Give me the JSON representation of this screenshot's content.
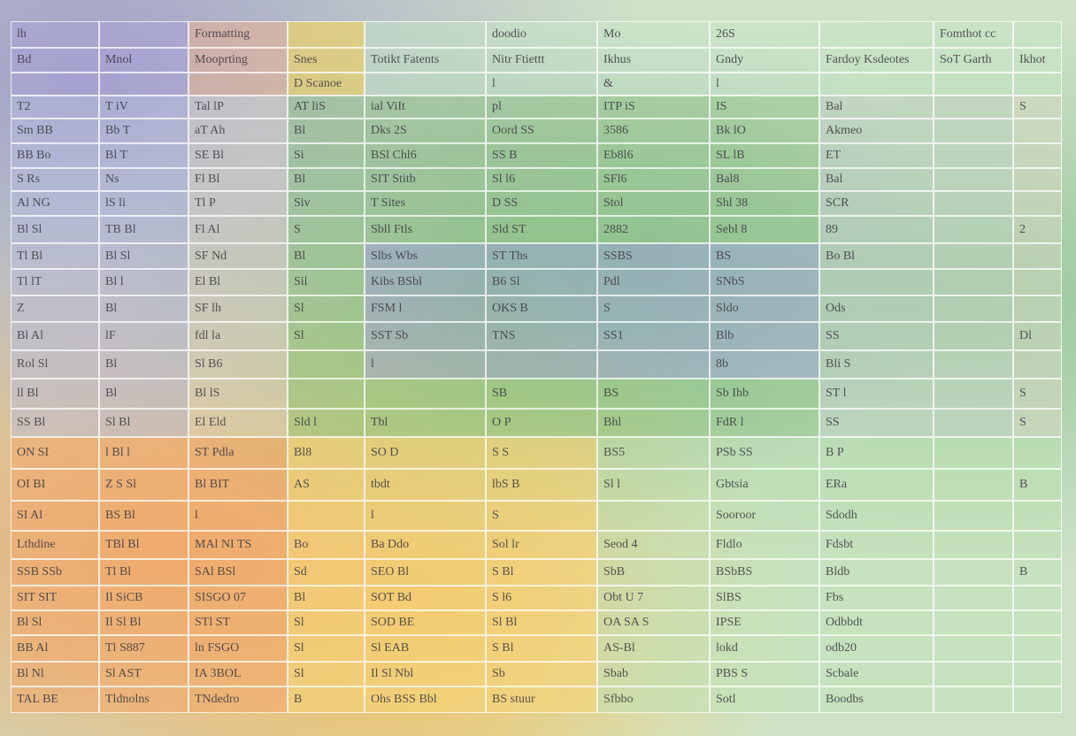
{
  "table": {
    "rows": [
      [
        "lh",
        null,
        "Formatting",
        null,
        null,
        "doodio",
        "Mo",
        "26S",
        null,
        "Fomthot cc",
        null
      ],
      [
        "Bd",
        "Mnol",
        "Mooprting",
        "Snes",
        "Totikt Fatents",
        "Nitr Ftiettt",
        "Ikhus",
        "Gndy",
        "Fardoy Ksdeotes",
        "SoT Garth",
        "Ikhot"
      ],
      [
        null,
        null,
        null,
        "D Scanoe",
        null,
        "l",
        "&",
        "l",
        null,
        null,
        null
      ],
      [
        "T2",
        "T iV",
        "Tal lP",
        "AT liS",
        "ial ViIt",
        "pl",
        "ITP iS",
        "IS",
        "Bal",
        null,
        "S"
      ],
      [
        "Sm BB",
        "Bb T",
        "aT Ah",
        "Bl",
        "Dks 2S",
        "Oord SS",
        "3586",
        "Bk lO",
        "Akmeo",
        null,
        null
      ],
      [
        "BB Bo",
        "Bl T",
        "SE Bl",
        "Si",
        "BSl Chl6",
        "SS B",
        "Eb8l6",
        "SL lB",
        "ET",
        null,
        null
      ],
      [
        "S Rs",
        "Ns",
        "Fl Bl",
        "Bl",
        "SIT Stitb",
        "Sl l6",
        "SFl6",
        "Bal8",
        "Bal",
        null,
        null
      ],
      [
        "Al NG",
        "lS li",
        "Tl P",
        "Siv",
        "T Sites",
        "D SS",
        "Stol",
        "Shl 38",
        "SCR",
        null,
        null
      ],
      [
        "Bl Sl",
        "TB Bl",
        "Fl Al",
        "S",
        "Sbll Ftls",
        "Sld ST",
        "2882",
        "Sebl 8",
        "89",
        null,
        "2"
      ],
      [
        "Tl Bl",
        "Bl Sl",
        "SF Nd",
        "Bl",
        "Slbs Wbs",
        "ST Ths",
        "SSBS",
        "BS",
        "Bo Bl",
        null,
        null
      ],
      [
        "Tl lT",
        "Bl l",
        "El Bl",
        "Sil",
        "Kibs BSbl",
        "B6 Sl",
        "Pdl",
        "SNbS",
        null,
        null,
        null
      ],
      [
        "Z",
        "Bl",
        "SF lh",
        "Sl",
        "FSM l",
        "OKS B",
        "S",
        "Sldo",
        "Ods",
        null,
        null
      ],
      [
        "Bl Al",
        "lF",
        "fdl la",
        "Sl",
        "SST Sb",
        "TNS",
        "SS1",
        "Blb",
        "SS",
        null,
        "Dl"
      ],
      [
        "Rol Sl",
        "Bl",
        "Sl B6",
        null,
        "l",
        null,
        null,
        "8b",
        "Bli S",
        null,
        null
      ],
      [
        "ll Bl",
        "Bl",
        "Bl lS",
        null,
        null,
        "SB",
        "BS",
        "Sb Ihb",
        "ST l",
        null,
        "S"
      ],
      [
        "SS Bl",
        "Sl Bl",
        "El Eld",
        "Sld l",
        "Tbl",
        "O P",
        "Bhl",
        "FdR l",
        "SS",
        null,
        "S"
      ],
      [
        "ON SI",
        "l Bl l",
        "ST Pdla",
        "Bl8",
        "SO D",
        "S S",
        "BS5",
        "PSb SS",
        "B P",
        null,
        null
      ],
      [
        "OI BI",
        "Z S Sl",
        "Bl BIT",
        "AS",
        "tbdt",
        "lbS B",
        "Sl l",
        "Gbtsia",
        "ERa",
        null,
        "B"
      ],
      [
        "SI Al",
        "BS Bl",
        "l",
        null,
        "l",
        "S",
        null,
        "Sooroor",
        "Sdodh",
        null,
        null
      ],
      [
        "Lthdine",
        "TBl Bl",
        "MAl NI TS",
        "Bo",
        "Ba Ddo",
        "Sol lr",
        "Seod 4",
        "Fldlo",
        "Fdsbt",
        null,
        null
      ],
      [
        "SSB SSb",
        "Tl Bl",
        "SAl BSl",
        "Sd",
        "SEO Bl",
        "S Bl",
        "SbB",
        "BSbBS",
        "Bldb",
        null,
        "B"
      ],
      [
        "SIT SIT",
        "Il SiCB",
        "SISGO 07",
        "Bl",
        "SOT Bd",
        "S l6",
        "Obt U 7",
        "SlBS",
        "Fbs",
        null,
        null
      ],
      [
        "Bl Sl",
        "Il Sl Bl",
        "STl ST",
        "Sl",
        "SOD BE",
        "Sl Bl",
        "OA SA S",
        "IPSE",
        "Odbbdt",
        null,
        null
      ],
      [
        "BB Al",
        "Tl S887",
        "ln FSGO",
        "Sl",
        "Sl EAB",
        "S Bl",
        "AS-Bl",
        "lokd",
        "odb20",
        null,
        null
      ],
      [
        "Bl Nl",
        "Sl AST",
        "IA 3BOL",
        "Sl",
        "Il Sl Nbl",
        "Sb",
        "Sbab",
        "PBS S",
        "Scbale",
        null,
        null
      ],
      [
        "TAL BE",
        "Tldnolns",
        "TNdedro",
        "B",
        "Ohs BSS Bbl",
        "BS stuur",
        "Sfbbo",
        "Sotl",
        "Boodbs",
        null,
        null
      ]
    ]
  }
}
